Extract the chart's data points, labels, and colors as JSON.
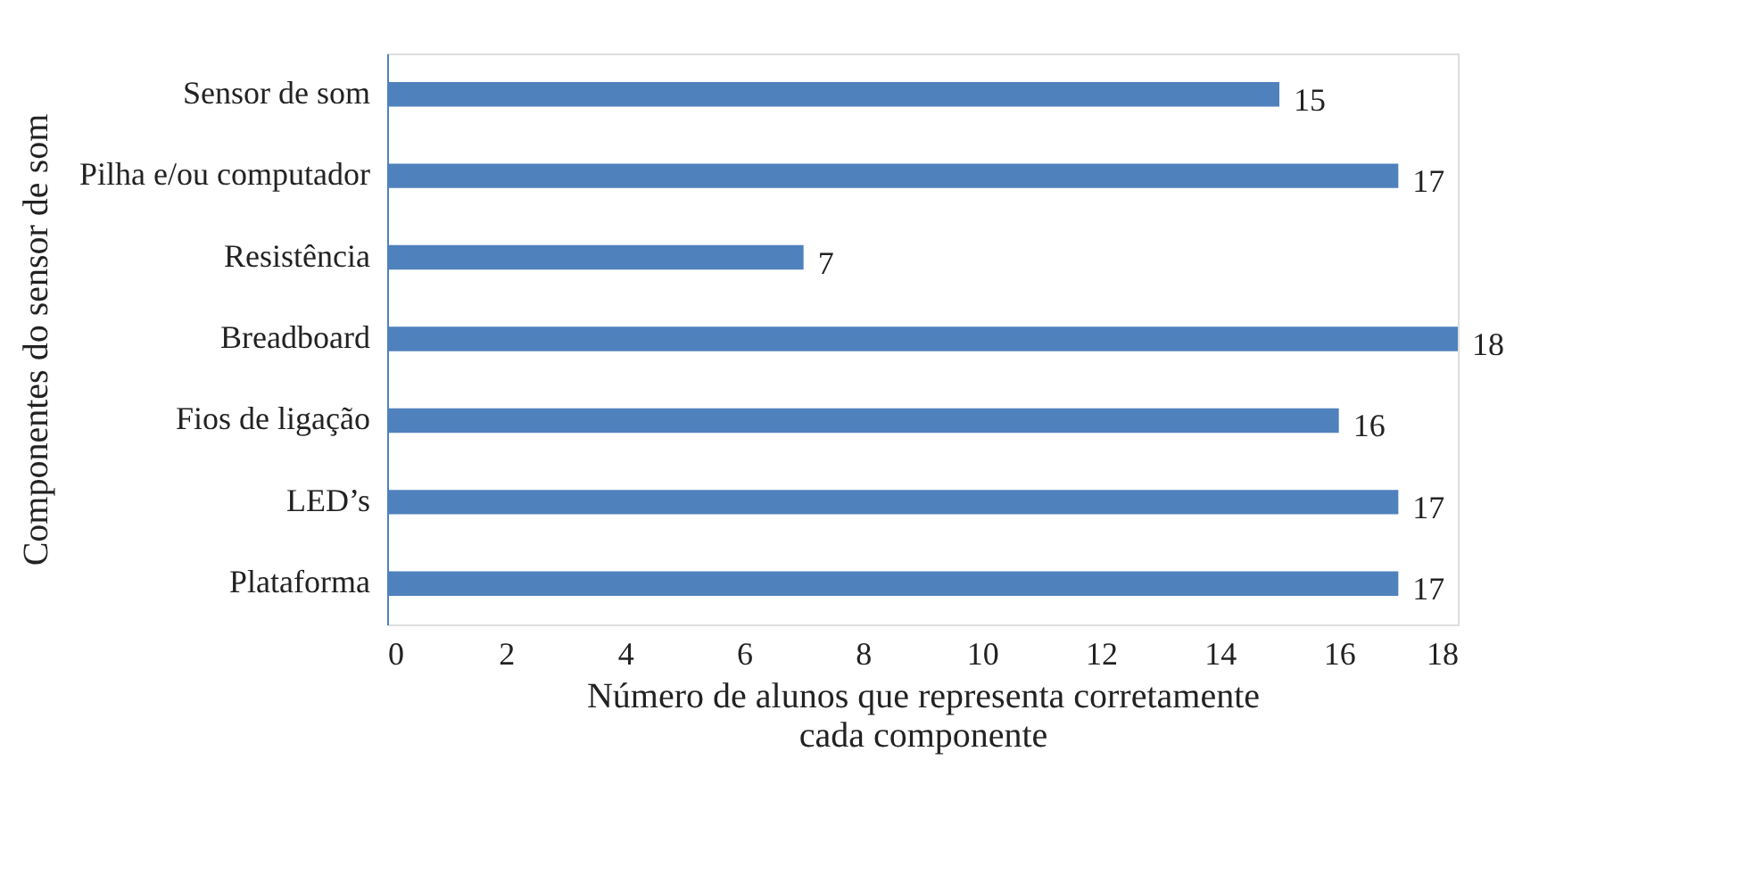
{
  "chart_data": {
    "type": "bar",
    "orientation": "horizontal",
    "categories": [
      "Sensor de som",
      "Pilha e/ou computador",
      "Resistência",
      "Breadboard",
      "Fios de ligação",
      "LED’s",
      "Plataforma"
    ],
    "values": [
      15,
      17,
      7,
      18,
      16,
      17,
      17
    ],
    "color": "#4f81bd",
    "xlim": [
      0,
      18
    ],
    "xticks": [
      0,
      2,
      4,
      6,
      8,
      10,
      12,
      14,
      16,
      18
    ],
    "xlabel": "Número de alunos que representa corretamente cada componente",
    "ylabel": "Componentes do sensor de som",
    "data_labels": true,
    "grid": false
  }
}
